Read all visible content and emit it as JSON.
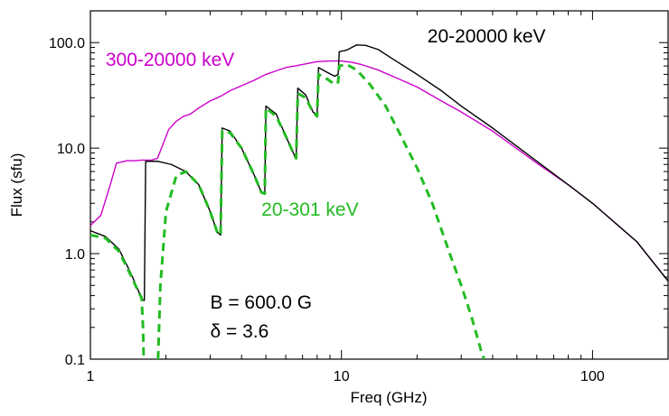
{
  "chart_data": {
    "type": "line",
    "xlabel": "Freq (GHz)",
    "ylabel": "Flux (sfu)",
    "xscale": "log",
    "yscale": "log",
    "xlim": [
      1,
      200
    ],
    "ylim": [
      0.1,
      200
    ],
    "x_ticks": [
      {
        "value": 1,
        "label": "1"
      },
      {
        "value": 10,
        "label": "10"
      },
      {
        "value": 100,
        "label": "100"
      }
    ],
    "y_ticks": [
      {
        "value": 0.1,
        "label": "0.1"
      },
      {
        "value": 1,
        "label": "1.0"
      },
      {
        "value": 10,
        "label": "10.0"
      },
      {
        "value": 100,
        "label": "100.0"
      }
    ],
    "grid": false,
    "series": [
      {
        "name": "20-20000 keV",
        "color": "#000000",
        "style": "solid",
        "points": [
          [
            1.0,
            1.65
          ],
          [
            1.15,
            1.45
          ],
          [
            1.3,
            1.1
          ],
          [
            1.45,
            0.65
          ],
          [
            1.55,
            0.45
          ],
          [
            1.6,
            0.37
          ],
          [
            1.64,
            0.36
          ],
          [
            1.66,
            7.5
          ],
          [
            1.85,
            7.5
          ],
          [
            2.1,
            7.0
          ],
          [
            2.4,
            6.0
          ],
          [
            2.7,
            4.5
          ],
          [
            3.0,
            2.5
          ],
          [
            3.2,
            1.6
          ],
          [
            3.3,
            1.5
          ],
          [
            3.35,
            15.5
          ],
          [
            3.6,
            14.5
          ],
          [
            4.0,
            10.0
          ],
          [
            4.5,
            5.5
          ],
          [
            4.8,
            3.8
          ],
          [
            4.95,
            3.7
          ],
          [
            5.0,
            25.0
          ],
          [
            5.5,
            21.0
          ],
          [
            6.0,
            13.0
          ],
          [
            6.5,
            8.5
          ],
          [
            6.6,
            8.0
          ],
          [
            6.7,
            37.0
          ],
          [
            7.2,
            32.0
          ],
          [
            7.7,
            22.0
          ],
          [
            8.0,
            20.5
          ],
          [
            8.1,
            58.0
          ],
          [
            8.8,
            52.0
          ],
          [
            9.4,
            48.0
          ],
          [
            9.7,
            50.0
          ],
          [
            9.8,
            82.0
          ],
          [
            10.5,
            85.0
          ],
          [
            11.5,
            95.0
          ],
          [
            12.5,
            94.0
          ],
          [
            14.0,
            86.0
          ],
          [
            16.0,
            70.0
          ],
          [
            20.0,
            50.0
          ],
          [
            25.0,
            35.0
          ],
          [
            30.0,
            25.0
          ],
          [
            40.0,
            15.5
          ],
          [
            60.0,
            7.5
          ],
          [
            80.0,
            4.5
          ],
          [
            100.0,
            3.0
          ],
          [
            150.0,
            1.3
          ],
          [
            200.0,
            0.55
          ]
        ]
      },
      {
        "name": "300-20000 keV",
        "color": "#cc00cc",
        "style": "solid",
        "points": [
          [
            1.0,
            1.85
          ],
          [
            1.1,
            2.3
          ],
          [
            1.2,
            4.5
          ],
          [
            1.27,
            7.2
          ],
          [
            1.4,
            7.6
          ],
          [
            1.5,
            7.6
          ],
          [
            1.6,
            7.7
          ],
          [
            1.75,
            7.7
          ],
          [
            1.85,
            8.0
          ],
          [
            1.95,
            11.0
          ],
          [
            2.05,
            15.0
          ],
          [
            2.2,
            18.0
          ],
          [
            2.35,
            20.0
          ],
          [
            2.5,
            21.0
          ],
          [
            2.7,
            24.0
          ],
          [
            3.0,
            28.0
          ],
          [
            3.3,
            31.0
          ],
          [
            3.6,
            35.0
          ],
          [
            4.0,
            39.0
          ],
          [
            4.5,
            44.0
          ],
          [
            5.0,
            50.0
          ],
          [
            5.5,
            54.0
          ],
          [
            6.0,
            58.0
          ],
          [
            6.5,
            60.0
          ],
          [
            7.0,
            62.0
          ],
          [
            8.0,
            66.0
          ],
          [
            9.0,
            67.0
          ],
          [
            10.0,
            67.0
          ],
          [
            11.0,
            65.0
          ],
          [
            12.0,
            62.0
          ],
          [
            14.0,
            55.0
          ],
          [
            17.0,
            45.0
          ],
          [
            20.0,
            38.0
          ],
          [
            25.0,
            28.0
          ],
          [
            30.0,
            22.0
          ],
          [
            40.0,
            14.5
          ],
          [
            60.0,
            7.2
          ],
          [
            80.0,
            4.5
          ],
          [
            100.0,
            3.0
          ],
          [
            150.0,
            1.3
          ],
          [
            200.0,
            0.55
          ]
        ]
      },
      {
        "name": "20-301 keV",
        "color": "#22bb22",
        "style": "dashed",
        "points": [
          [
            1.0,
            1.5
          ],
          [
            1.15,
            1.4
          ],
          [
            1.3,
            1.05
          ],
          [
            1.45,
            0.62
          ],
          [
            1.55,
            0.44
          ],
          [
            1.6,
            0.38
          ],
          [
            1.62,
            0.2
          ],
          [
            1.63,
            0.1
          ],
          [
            null,
            null
          ],
          [
            1.86,
            0.1
          ],
          [
            1.9,
            0.5
          ],
          [
            2.0,
            2.5
          ],
          [
            2.2,
            5.5
          ],
          [
            2.4,
            6.0
          ],
          [
            2.7,
            4.5
          ],
          [
            3.0,
            2.5
          ],
          [
            3.2,
            1.6
          ],
          [
            3.3,
            1.5
          ],
          [
            3.35,
            14.5
          ],
          [
            3.6,
            14.0
          ],
          [
            4.0,
            10.0
          ],
          [
            4.5,
            5.5
          ],
          [
            4.8,
            3.8
          ],
          [
            4.95,
            3.7
          ],
          [
            5.0,
            24.0
          ],
          [
            5.5,
            20.0
          ],
          [
            6.0,
            13.0
          ],
          [
            6.5,
            8.5
          ],
          [
            6.6,
            8.0
          ],
          [
            6.7,
            33.0
          ],
          [
            7.2,
            30.0
          ],
          [
            7.7,
            22.0
          ],
          [
            8.0,
            20.0
          ],
          [
            8.1,
            50.0
          ],
          [
            8.8,
            45.0
          ],
          [
            9.4,
            40.0
          ],
          [
            9.7,
            42.0
          ],
          [
            9.8,
            60.0
          ],
          [
            10.5,
            62.0
          ],
          [
            11.5,
            55.0
          ],
          [
            13.0,
            40.0
          ],
          [
            15.0,
            25.0
          ],
          [
            17.0,
            14.0
          ],
          [
            20.0,
            6.5
          ],
          [
            23.0,
            3.0
          ],
          [
            27.0,
            1.0
          ],
          [
            30.0,
            0.5
          ],
          [
            33.0,
            0.25
          ],
          [
            36.0,
            0.12
          ],
          [
            37.0,
            0.1
          ]
        ]
      }
    ],
    "annotations": [
      {
        "text": "20-20000 keV",
        "color": "#000000",
        "x": 22,
        "y": 100
      },
      {
        "text": "300-20000 keV",
        "color": "#cc00cc",
        "x": 1.15,
        "y": 60
      },
      {
        "text": "20-301 keV",
        "color": "#22bb22",
        "x": 4.8,
        "y": 2.3
      },
      {
        "text": "B = 600.0 G",
        "color": "#000000",
        "x": 3.0,
        "y": 0.3
      },
      {
        "text": "δ = 3.6",
        "color": "#000000",
        "x": 3.0,
        "y": 0.16
      }
    ]
  }
}
